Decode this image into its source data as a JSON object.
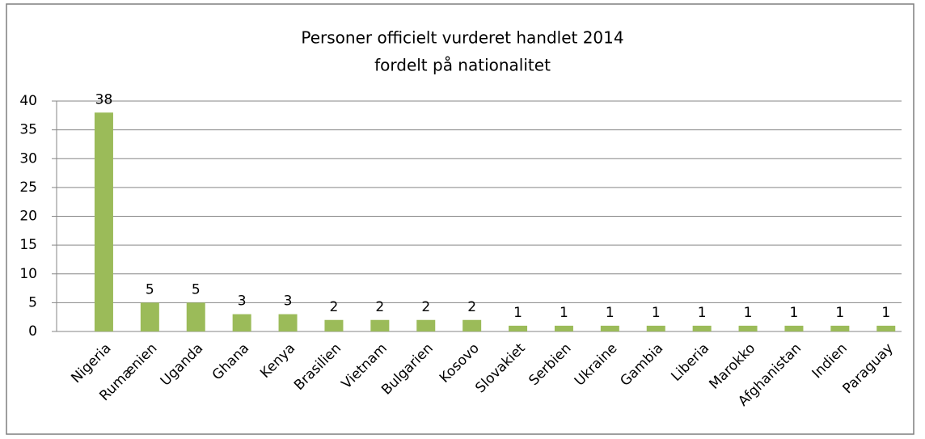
{
  "chart_data": {
    "type": "bar",
    "title": "Personer officielt vurderet handlet 2014",
    "subtitle": "fordelt på nationalitet",
    "categories": [
      "Nigeria",
      "Rumænien",
      "Uganda",
      "Ghana",
      "Kenya",
      "Brasilien",
      "Vietnam",
      "Bulgarien",
      "Kosovo",
      "Slovakiet",
      "Serbien",
      "Ukraine",
      "Gambia",
      "Liberia",
      "Marokko",
      "Afghanistan",
      "Indien",
      "Paraguay"
    ],
    "values": [
      38,
      5,
      5,
      3,
      3,
      2,
      2,
      2,
      2,
      1,
      1,
      1,
      1,
      1,
      1,
      1,
      1,
      1
    ],
    "color": "#9bbb59",
    "ylim": [
      0,
      40
    ],
    "yticks": [
      0,
      5,
      10,
      15,
      20,
      25,
      30,
      35,
      40
    ],
    "grid": true
  }
}
